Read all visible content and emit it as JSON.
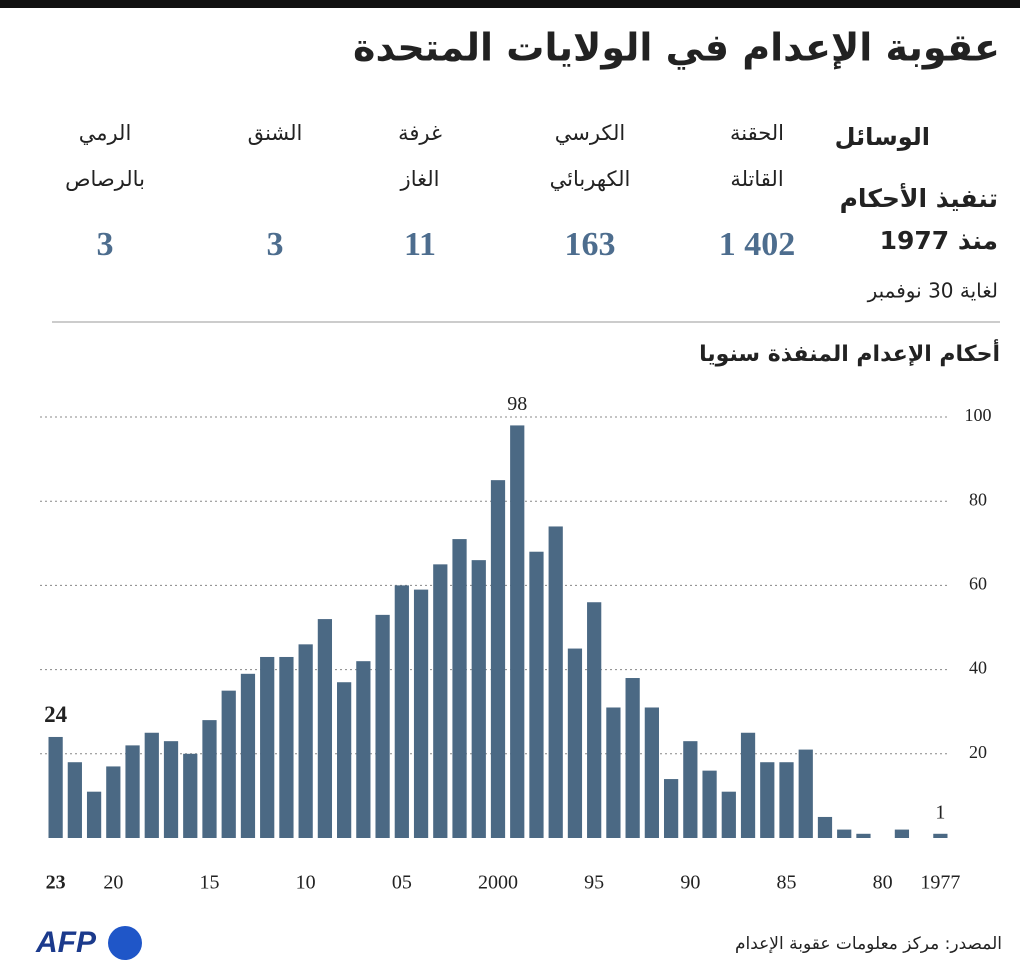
{
  "title": "عقوبة الإعدام في الولايات المتحدة",
  "methods": {
    "header": "الوسائل",
    "columns": [
      {
        "name": [
          "الحقنة",
          "القاتلة"
        ],
        "count": "1 402"
      },
      {
        "name": [
          "الكرسي",
          "الكهربائي"
        ],
        "count": "163"
      },
      {
        "name": [
          "غرفة",
          "الغاز"
        ],
        "count": "11"
      },
      {
        "name": [
          "الشنق"
        ],
        "count": "3"
      },
      {
        "name": [
          "الرمي",
          "بالرصاص"
        ],
        "count": "3"
      }
    ],
    "executions_label": [
      "تنفيذ الأحكام",
      "منذ 1977"
    ],
    "as_of": "لغاية 30 نوفمبر"
  },
  "chart_data": {
    "type": "bar",
    "subtitle": "أحكام الإعدام المنفذة سنويا",
    "categories": [
      "23",
      null,
      null,
      "20",
      null,
      null,
      null,
      null,
      "15",
      null,
      null,
      null,
      null,
      "10",
      null,
      null,
      null,
      null,
      "05",
      null,
      null,
      null,
      null,
      "2000",
      null,
      null,
      null,
      null,
      "95",
      null,
      null,
      null,
      null,
      "90",
      null,
      null,
      null,
      null,
      "85",
      null,
      null,
      null,
      null,
      "80",
      null,
      null,
      "1977"
    ],
    "values": [
      24,
      18,
      11,
      17,
      22,
      25,
      23,
      20,
      28,
      35,
      39,
      43,
      43,
      46,
      52,
      37,
      42,
      53,
      60,
      59,
      65,
      71,
      66,
      85,
      98,
      68,
      74,
      45,
      56,
      31,
      38,
      31,
      14,
      23,
      16,
      11,
      25,
      18,
      18,
      21,
      5,
      2,
      1,
      0,
      2,
      0,
      1
    ],
    "value_labels": [
      "24",
      null,
      null,
      null,
      null,
      null,
      null,
      null,
      null,
      null,
      null,
      null,
      null,
      null,
      null,
      null,
      null,
      null,
      null,
      null,
      null,
      null,
      null,
      null,
      "98",
      null,
      null,
      null,
      null,
      null,
      null,
      null,
      null,
      null,
      null,
      null,
      null,
      null,
      null,
      null,
      null,
      null,
      null,
      null,
      null,
      null,
      "1"
    ],
    "color": "#4b6984",
    "ylim": [
      0,
      100
    ],
    "yticks": [
      20,
      40,
      60,
      80,
      100
    ],
    "grid": true
  },
  "source": "المصدر: مركز معلومات عقوبة الإعدام",
  "logo": "AFP"
}
